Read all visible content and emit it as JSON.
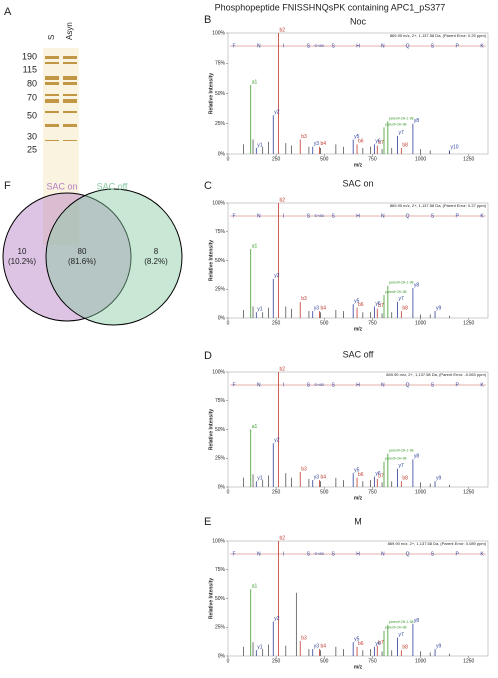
{
  "figure_title": "Phosphopeptide FNISSHNQsPK containing APC1_pS377",
  "panel_letters": [
    "A",
    "B",
    "C",
    "D",
    "E",
    "F"
  ],
  "gel": {
    "lanes": [
      "S",
      "Asyn"
    ],
    "markers": [
      190,
      115,
      80,
      70,
      50,
      30,
      25
    ]
  },
  "venn": {
    "sets": [
      {
        "name": "SAC on",
        "color": "#b57cc4"
      },
      {
        "name": "SAC off",
        "color": "#86c9a0"
      }
    ],
    "regions": [
      {
        "count": 10,
        "label": "(10.2%)"
      },
      {
        "count": 80,
        "label": "(81.6%)"
      },
      {
        "count": 8,
        "label": "(8.2%)"
      }
    ]
  },
  "chart_data": [
    {
      "type": "spectrum",
      "title": "Noc",
      "header": "869.90 m/z, 2+, 1,137.58 Da, (Parent Error: 0.29 ppm)",
      "sequence": [
        "F",
        "N",
        "I",
        "S",
        "S",
        "H",
        "N",
        "Q",
        "S",
        "P",
        "K"
      ],
      "modification": "S+80",
      "xlabel": "m/z",
      "ylabel": "Relative Intensity",
      "xlim": [
        0,
        1350
      ],
      "xticks": [
        0,
        250,
        500,
        750,
        1000,
        1250
      ],
      "ylim": [
        0,
        100
      ],
      "yticks": [
        {
          "value": 0,
          "label": "0%"
        },
        {
          "value": 25,
          "label": "25%"
        },
        {
          "value": 50,
          "label": "50%"
        },
        {
          "value": 75,
          "label": "75%"
        },
        {
          "value": 100,
          "label": "100%"
        }
      ],
      "series": [
        {
          "color": "#555555",
          "x": [
            80,
            130,
            180,
            210,
            300,
            330,
            420,
            480,
            560,
            600,
            700,
            740,
            800,
            850,
            1000,
            1050,
            1150
          ],
          "values": [
            8,
            12,
            6,
            10,
            9,
            7,
            6,
            5,
            8,
            6,
            5,
            6,
            4,
            5,
            4,
            3,
            2
          ]
        },
        {
          "color": "#c0392b",
          "x": [
            262,
            375,
            475,
            670,
            775,
            900
          ],
          "values": [
            100,
            12,
            6,
            8,
            7,
            5
          ],
          "labels": [
            "b2",
            "b3",
            "b4",
            "b6",
            "b7",
            "b8"
          ]
        },
        {
          "color": "#2c3e99",
          "x": [
            147,
            235,
            440,
            650,
            760,
            880,
            960,
            1150
          ],
          "values": [
            5,
            32,
            6,
            12,
            8,
            15,
            25,
            3
          ],
          "labels": [
            "y1",
            "y2",
            "y3",
            "y5",
            "y6",
            "y7",
            "y8",
            "y10"
          ]
        },
        {
          "color": "#3a9a2a",
          "x": [
            118,
            810,
            830
          ],
          "values": [
            57,
            22,
            27
          ],
          "labels": [
            "a1",
            "parent+2H-98",
            "parent+2H-1-98"
          ]
        }
      ]
    },
    {
      "type": "spectrum",
      "title": "SAC on",
      "header": "869.90 m/z, 2+, 1,137.58 Da, (Parent Error: 0.27 ppm)",
      "sequence": [
        "F",
        "N",
        "I",
        "S",
        "S",
        "H",
        "N",
        "Q",
        "S",
        "P",
        "K"
      ],
      "modification": "S+80",
      "xlabel": "m/z",
      "ylabel": "Relative Intensity",
      "xlim": [
        0,
        1350
      ],
      "xticks": [
        0,
        250,
        500,
        750,
        1000,
        1250
      ],
      "ylim": [
        0,
        100
      ],
      "yticks": [
        {
          "value": 0,
          "label": "0%"
        },
        {
          "value": 25,
          "label": "25%"
        },
        {
          "value": 50,
          "label": "50%"
        },
        {
          "value": 75,
          "label": "75%"
        },
        {
          "value": 100,
          "label": "100%"
        }
      ],
      "series": [
        {
          "color": "#555555",
          "x": [
            80,
            130,
            180,
            210,
            300,
            330,
            420,
            480,
            560,
            600,
            700,
            740,
            800,
            850,
            1000,
            1050,
            1150
          ],
          "values": [
            7,
            10,
            5,
            9,
            10,
            8,
            6,
            5,
            7,
            6,
            5,
            5,
            4,
            5,
            3,
            3,
            2
          ]
        },
        {
          "color": "#c0392b",
          "x": [
            262,
            375,
            475,
            670,
            775,
            900
          ],
          "values": [
            100,
            14,
            6,
            9,
            8,
            6
          ],
          "labels": [
            "b2",
            "b3",
            "b4",
            "b6",
            "b7",
            "b8"
          ]
        },
        {
          "color": "#2c3e99",
          "x": [
            147,
            235,
            440,
            650,
            760,
            880,
            960,
            1075
          ],
          "values": [
            5,
            34,
            6,
            12,
            10,
            14,
            26,
            6
          ],
          "labels": [
            "y1",
            "y2",
            "y3",
            "y5",
            "y6",
            "y7",
            "y8",
            "y9"
          ]
        },
        {
          "color": "#3a9a2a",
          "x": [
            118,
            810,
            830
          ],
          "values": [
            60,
            20,
            28
          ],
          "labels": [
            "a1",
            "parent+2H-98",
            "parent+2H-1-98"
          ]
        }
      ]
    },
    {
      "type": "spectrum",
      "title": "SAC off",
      "header": "869.90 m/z, 2+, 1,137.58 Da, (Parent Error: -0.063 ppm)",
      "sequence": [
        "F",
        "N",
        "I",
        "S",
        "S",
        "H",
        "N",
        "Q",
        "S",
        "P",
        "K"
      ],
      "modification": "S+80",
      "xlabel": "m/z",
      "ylabel": "Relative Intensity",
      "xlim": [
        0,
        1350
      ],
      "xticks": [
        0,
        250,
        500,
        750,
        1000,
        1250
      ],
      "ylim": [
        0,
        100
      ],
      "yticks": [
        {
          "value": 0,
          "label": "0%"
        },
        {
          "value": 25,
          "label": "25%"
        },
        {
          "value": 50,
          "label": "50%"
        },
        {
          "value": 75,
          "label": "75%"
        },
        {
          "value": 100,
          "label": "100%"
        }
      ],
      "series": [
        {
          "color": "#555555",
          "x": [
            80,
            130,
            180,
            210,
            300,
            330,
            420,
            480,
            560,
            600,
            700,
            740,
            800,
            850,
            1000,
            1050,
            1150
          ],
          "values": [
            8,
            11,
            6,
            10,
            12,
            8,
            7,
            5,
            8,
            6,
            5,
            6,
            4,
            5,
            4,
            3,
            2
          ]
        },
        {
          "color": "#c0392b",
          "x": [
            262,
            375,
            475,
            670,
            775,
            900
          ],
          "values": [
            100,
            13,
            6,
            8,
            7,
            5
          ],
          "labels": [
            "b2",
            "b3",
            "b4",
            "b6",
            "b7",
            "b8"
          ]
        },
        {
          "color": "#2c3e99",
          "x": [
            147,
            235,
            440,
            650,
            760,
            880,
            960,
            1075
          ],
          "values": [
            5,
            38,
            6,
            12,
            9,
            16,
            24,
            5
          ],
          "labels": [
            "y1",
            "y2",
            "y3",
            "y5",
            "y6",
            "y7",
            "y8",
            "y9"
          ]
        },
        {
          "color": "#3a9a2a",
          "x": [
            118,
            810,
            830
          ],
          "values": [
            50,
            22,
            29
          ],
          "labels": [
            "a1",
            "parent+2H-98",
            "parent+2H-1-98"
          ]
        }
      ]
    },
    {
      "type": "spectrum",
      "title": "M",
      "header": "869.90 m/z, 2+, 1,137.58 Da, (Parent Error: 0.089 ppm)",
      "sequence": [
        "F",
        "N",
        "I",
        "S",
        "S",
        "H",
        "N",
        "Q",
        "S",
        "P",
        "K"
      ],
      "modification": "S+80",
      "xlabel": "m/z",
      "ylabel": "Relative Intensity",
      "xlim": [
        0,
        1350
      ],
      "xticks": [
        0,
        250,
        500,
        750,
        1000,
        1250
      ],
      "ylim": [
        0,
        100
      ],
      "yticks": [
        {
          "value": 0,
          "label": "0%"
        },
        {
          "value": 25,
          "label": "25%"
        },
        {
          "value": 50,
          "label": "50%"
        },
        {
          "value": 75,
          "label": "75%"
        },
        {
          "value": 100,
          "label": "100%"
        }
      ],
      "series": [
        {
          "color": "#555555",
          "x": [
            80,
            130,
            180,
            210,
            300,
            355,
            420,
            480,
            560,
            600,
            700,
            740,
            800,
            850,
            1000,
            1050,
            1150
          ],
          "values": [
            8,
            12,
            6,
            10,
            9,
            55,
            6,
            5,
            8,
            6,
            5,
            6,
            4,
            5,
            4,
            3,
            2
          ]
        },
        {
          "color": "#c0392b",
          "x": [
            262,
            375,
            475,
            670,
            775,
            900
          ],
          "values": [
            100,
            13,
            6,
            8,
            9,
            5
          ],
          "labels": [
            "b2",
            "b3",
            "b4",
            "b6",
            "b7",
            "b8"
          ]
        },
        {
          "color": "#2c3e99",
          "x": [
            147,
            235,
            440,
            650,
            760,
            880,
            960,
            1075
          ],
          "values": [
            5,
            30,
            6,
            12,
            8,
            16,
            28,
            6
          ],
          "labels": [
            "y1",
            "y2",
            "y3",
            "y5",
            "y6",
            "y7",
            "y8",
            "y9"
          ]
        },
        {
          "color": "#3a9a2a",
          "x": [
            118,
            810,
            830
          ],
          "values": [
            58,
            22,
            27
          ],
          "labels": [
            "a1",
            "parent+2H-98",
            "parent+2H-1-98"
          ]
        }
      ]
    }
  ]
}
